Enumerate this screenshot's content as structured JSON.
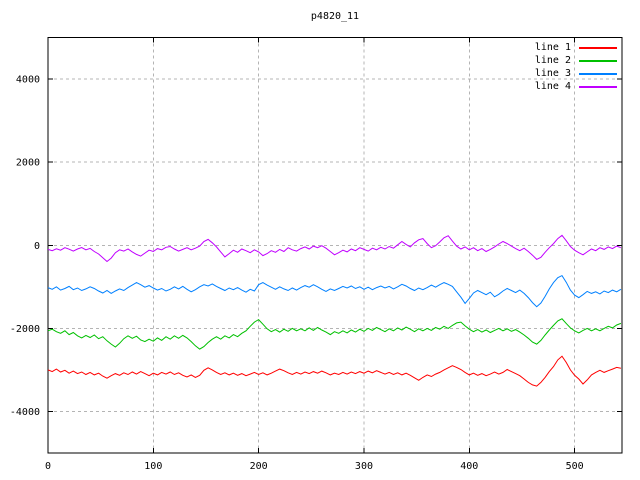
{
  "chart_data": {
    "type": "line",
    "title": "p4820_11",
    "xlabel": "",
    "ylabel": "",
    "xlim": [
      0,
      545
    ],
    "ylim": [
      -5000,
      5000
    ],
    "x_ticks": [
      0,
      100,
      200,
      300,
      400,
      500
    ],
    "y_ticks": [
      -4000,
      -2000,
      0,
      2000,
      4000
    ],
    "grid": true,
    "legend_position": "top-right",
    "x_start": 0,
    "x_step": 4,
    "series": [
      {
        "name": "line 1",
        "color": "#ff0000",
        "values": [
          -3000,
          -3040,
          -2980,
          -3050,
          -3010,
          -3080,
          -3030,
          -3090,
          -3050,
          -3110,
          -3060,
          -3120,
          -3080,
          -3150,
          -3200,
          -3140,
          -3090,
          -3130,
          -3070,
          -3110,
          -3050,
          -3100,
          -3040,
          -3090,
          -3140,
          -3080,
          -3120,
          -3060,
          -3100,
          -3050,
          -3110,
          -3070,
          -3130,
          -3170,
          -3120,
          -3180,
          -3130,
          -3010,
          -2950,
          -3000,
          -3060,
          -3110,
          -3070,
          -3120,
          -3080,
          -3130,
          -3090,
          -3140,
          -3100,
          -3060,
          -3110,
          -3070,
          -3120,
          -3080,
          -3030,
          -2980,
          -3020,
          -3070,
          -3110,
          -3060,
          -3100,
          -3050,
          -3090,
          -3040,
          -3080,
          -3030,
          -3070,
          -3120,
          -3080,
          -3110,
          -3060,
          -3100,
          -3050,
          -3090,
          -3040,
          -3080,
          -3030,
          -3070,
          -3020,
          -3060,
          -3100,
          -3060,
          -3110,
          -3070,
          -3120,
          -3080,
          -3130,
          -3190,
          -3250,
          -3180,
          -3120,
          -3160,
          -3100,
          -3060,
          -3000,
          -2950,
          -2900,
          -2940,
          -2990,
          -3060,
          -3120,
          -3080,
          -3130,
          -3090,
          -3140,
          -3100,
          -3050,
          -3100,
          -3060,
          -2990,
          -3040,
          -3090,
          -3140,
          -3220,
          -3300,
          -3360,
          -3390,
          -3300,
          -3180,
          -3040,
          -2920,
          -2760,
          -2670,
          -2820,
          -3000,
          -3130,
          -3220,
          -3340,
          -3240,
          -3120,
          -3060,
          -3010,
          -3060,
          -3020,
          -2980,
          -2940,
          -2960
        ]
      },
      {
        "name": "line 2",
        "color": "#00c000",
        "values": [
          -2060,
          -2020,
          -2080,
          -2120,
          -2060,
          -2150,
          -2100,
          -2180,
          -2230,
          -2170,
          -2220,
          -2160,
          -2250,
          -2200,
          -2300,
          -2380,
          -2450,
          -2360,
          -2250,
          -2180,
          -2240,
          -2190,
          -2280,
          -2320,
          -2260,
          -2310,
          -2230,
          -2290,
          -2200,
          -2260,
          -2180,
          -2240,
          -2170,
          -2230,
          -2320,
          -2420,
          -2500,
          -2440,
          -2340,
          -2260,
          -2200,
          -2260,
          -2180,
          -2230,
          -2150,
          -2200,
          -2120,
          -2060,
          -1950,
          -1850,
          -1790,
          -1900,
          -2010,
          -2080,
          -2030,
          -2090,
          -2020,
          -2070,
          -2000,
          -2060,
          -2010,
          -2060,
          -1990,
          -2050,
          -1980,
          -2040,
          -2090,
          -2150,
          -2080,
          -2120,
          -2060,
          -2110,
          -2040,
          -2090,
          -2020,
          -2070,
          -2000,
          -2050,
          -1980,
          -2030,
          -2080,
          -2010,
          -2060,
          -1990,
          -2040,
          -1970,
          -2020,
          -2080,
          -2010,
          -2060,
          -2000,
          -2050,
          -1980,
          -2020,
          -1950,
          -2000,
          -1930,
          -1870,
          -1850,
          -1940,
          -2020,
          -2080,
          -2030,
          -2090,
          -2040,
          -2100,
          -2050,
          -2000,
          -2060,
          -2010,
          -2070,
          -2030,
          -2090,
          -2160,
          -2240,
          -2330,
          -2380,
          -2290,
          -2160,
          -2040,
          -1930,
          -1820,
          -1770,
          -1880,
          -1990,
          -2060,
          -2110,
          -2050,
          -2000,
          -2060,
          -2010,
          -2060,
          -2000,
          -1950,
          -1990,
          -1920,
          -1880
        ]
      },
      {
        "name": "line 3",
        "color": "#0080ff",
        "values": [
          -1020,
          -1060,
          -1000,
          -1080,
          -1040,
          -990,
          -1070,
          -1030,
          -1090,
          -1050,
          -1000,
          -1040,
          -1100,
          -1150,
          -1090,
          -1160,
          -1100,
          -1050,
          -1090,
          -1020,
          -960,
          -900,
          -950,
          -1010,
          -970,
          -1030,
          -1080,
          -1040,
          -1100,
          -1060,
          -1000,
          -1050,
          -990,
          -1060,
          -1120,
          -1070,
          -1000,
          -950,
          -980,
          -930,
          -990,
          -1040,
          -1090,
          -1030,
          -1070,
          -1020,
          -1080,
          -1130,
          -1060,
          -1100,
          -950,
          -900,
          -960,
          -1010,
          -1060,
          -1000,
          -1050,
          -1090,
          -1030,
          -1080,
          -1020,
          -970,
          -1010,
          -950,
          -1000,
          -1060,
          -1110,
          -1050,
          -1090,
          -1040,
          -990,
          -1030,
          -980,
          -1040,
          -1000,
          -1060,
          -1010,
          -1070,
          -1020,
          -980,
          -1030,
          -990,
          -1050,
          -1000,
          -940,
          -980,
          -1040,
          -1090,
          -1030,
          -1070,
          -1020,
          -960,
          -1010,
          -950,
          -900,
          -940,
          -990,
          -1120,
          -1250,
          -1400,
          -1280,
          -1150,
          -1090,
          -1140,
          -1190,
          -1130,
          -1240,
          -1180,
          -1100,
          -1040,
          -1090,
          -1140,
          -1080,
          -1160,
          -1260,
          -1380,
          -1480,
          -1390,
          -1230,
          -1050,
          -900,
          -780,
          -730,
          -890,
          -1080,
          -1200,
          -1260,
          -1190,
          -1110,
          -1160,
          -1120,
          -1170,
          -1100,
          -1140,
          -1080,
          -1120,
          -1060
        ]
      },
      {
        "name": "line 4",
        "color": "#c000ff",
        "values": [
          -100,
          -130,
          -85,
          -120,
          -60,
          -95,
          -140,
          -90,
          -55,
          -110,
          -75,
          -150,
          -210,
          -300,
          -390,
          -310,
          -180,
          -110,
          -140,
          -90,
          -160,
          -220,
          -260,
          -190,
          -120,
          -150,
          -80,
          -110,
          -50,
          -30,
          -90,
          -140,
          -100,
          -60,
          -110,
          -70,
          -20,
          90,
          140,
          60,
          -40,
          -160,
          -280,
          -200,
          -120,
          -170,
          -90,
          -130,
          -180,
          -110,
          -160,
          -250,
          -200,
          -130,
          -170,
          -100,
          -150,
          -60,
          -110,
          -140,
          -80,
          -40,
          -90,
          -20,
          -60,
          -10,
          -70,
          -150,
          -230,
          -180,
          -120,
          -160,
          -90,
          -130,
          -60,
          -100,
          -140,
          -70,
          -110,
          -50,
          -90,
          -30,
          -70,
          10,
          90,
          20,
          -40,
          60,
          130,
          160,
          40,
          -60,
          -10,
          80,
          180,
          230,
          100,
          -20,
          -90,
          -40,
          -110,
          -60,
          -130,
          -80,
          -150,
          -100,
          -40,
          30,
          90,
          40,
          -20,
          -80,
          -130,
          -70,
          -150,
          -240,
          -340,
          -290,
          -170,
          -60,
          40,
          160,
          240,
          110,
          -30,
          -120,
          -180,
          -230,
          -160,
          -90,
          -130,
          -60,
          -100,
          -40,
          -80,
          -20,
          -60
        ]
      }
    ]
  }
}
